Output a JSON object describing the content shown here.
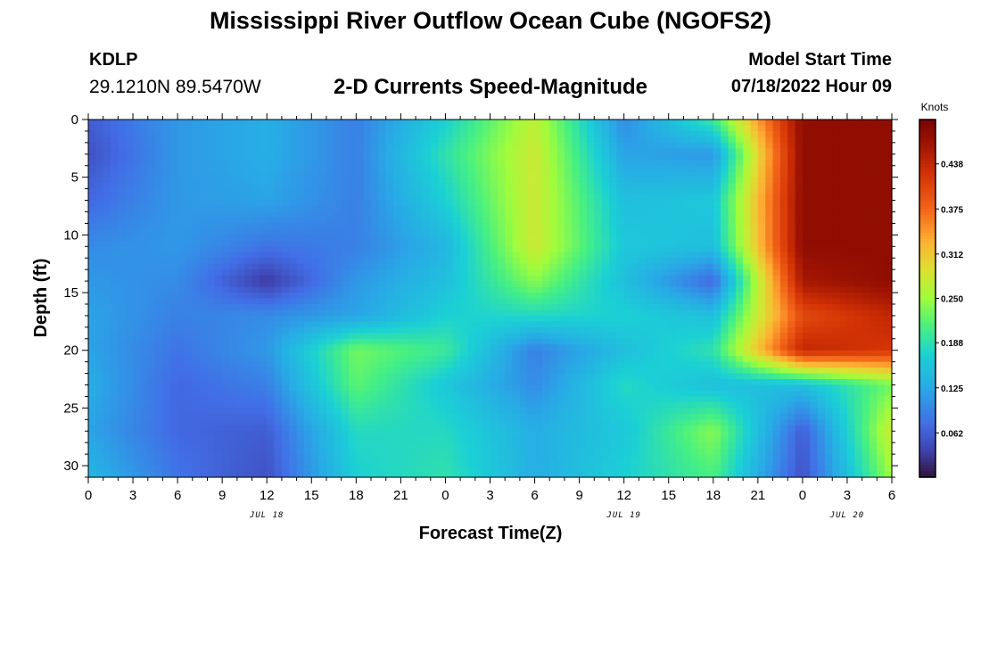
{
  "header": {
    "title": "Mississippi River Outflow Ocean Cube (NGOFS2)",
    "station_id": "KDLP",
    "station_coords": "29.1210N  89.5470W",
    "subtitle": "2-D Currents Speed-Magnitude",
    "model_start_label": "Model Start Time",
    "model_start_value": "07/18/2022 Hour 09"
  },
  "footer": {
    "title": "Mississippi River Outflow Ocean Cube (NGOFS2)"
  },
  "chart_data": {
    "type": "heatmap",
    "xlabel": "Forecast Time(Z)",
    "ylabel": "Depth (ft)",
    "x_range_hours": [
      0,
      54
    ],
    "y_range_ft": [
      0,
      31
    ],
    "y_inverted": true,
    "x_tick_labels": [
      "0",
      "3",
      "6",
      "9",
      "12",
      "15",
      "18",
      "21",
      "0",
      "3",
      "6",
      "9",
      "12",
      "15",
      "18",
      "21",
      "0",
      "3",
      "6"
    ],
    "y_tick_labels": [
      "0",
      "5",
      "10",
      "15",
      "20",
      "25",
      "30"
    ],
    "y_tick_values": [
      0,
      5,
      10,
      15,
      20,
      25,
      30
    ],
    "date_labels": [
      {
        "label": "JUL 18",
        "hour": 12
      },
      {
        "label": "JUL 19",
        "hour": 36
      },
      {
        "label": "JUL 20",
        "hour": 51
      }
    ],
    "colorbar": {
      "title": "Knots",
      "range": [
        0,
        0.5
      ],
      "tick_values": [
        0.062,
        0.125,
        0.188,
        0.25,
        0.312,
        0.375,
        0.438
      ],
      "tick_labels": [
        "0.062",
        "0.125",
        "0.188",
        "0.250",
        "0.312",
        "0.375",
        "0.438"
      ]
    },
    "grid": false,
    "x_hours": [
      0,
      6,
      12,
      18,
      24,
      30,
      36,
      42,
      48,
      54
    ],
    "y_depths_ft": [
      0,
      3,
      7,
      11,
      14,
      17,
      20,
      23,
      27,
      31
    ],
    "speed_knots": [
      [
        0.06,
        0.11,
        0.13,
        0.09,
        0.17,
        0.27,
        0.1,
        0.2,
        0.48,
        0.48
      ],
      [
        0.05,
        0.11,
        0.13,
        0.09,
        0.19,
        0.28,
        0.12,
        0.11,
        0.48,
        0.48
      ],
      [
        0.07,
        0.11,
        0.12,
        0.09,
        0.17,
        0.28,
        0.15,
        0.16,
        0.48,
        0.48
      ],
      [
        0.1,
        0.11,
        0.08,
        0.09,
        0.14,
        0.28,
        0.16,
        0.15,
        0.48,
        0.48
      ],
      [
        0.11,
        0.1,
        0.03,
        0.11,
        0.15,
        0.24,
        0.15,
        0.07,
        0.46,
        0.48
      ],
      [
        0.12,
        0.09,
        0.1,
        0.12,
        0.17,
        0.18,
        0.17,
        0.15,
        0.4,
        0.44
      ],
      [
        0.12,
        0.08,
        0.11,
        0.23,
        0.2,
        0.09,
        0.15,
        0.19,
        0.44,
        0.42
      ],
      [
        0.13,
        0.07,
        0.09,
        0.22,
        0.16,
        0.1,
        0.18,
        0.15,
        0.15,
        0.23
      ],
      [
        0.12,
        0.07,
        0.06,
        0.18,
        0.18,
        0.13,
        0.16,
        0.24,
        0.06,
        0.28
      ],
      [
        0.14,
        0.08,
        0.05,
        0.17,
        0.19,
        0.13,
        0.17,
        0.21,
        0.05,
        0.25
      ]
    ]
  }
}
